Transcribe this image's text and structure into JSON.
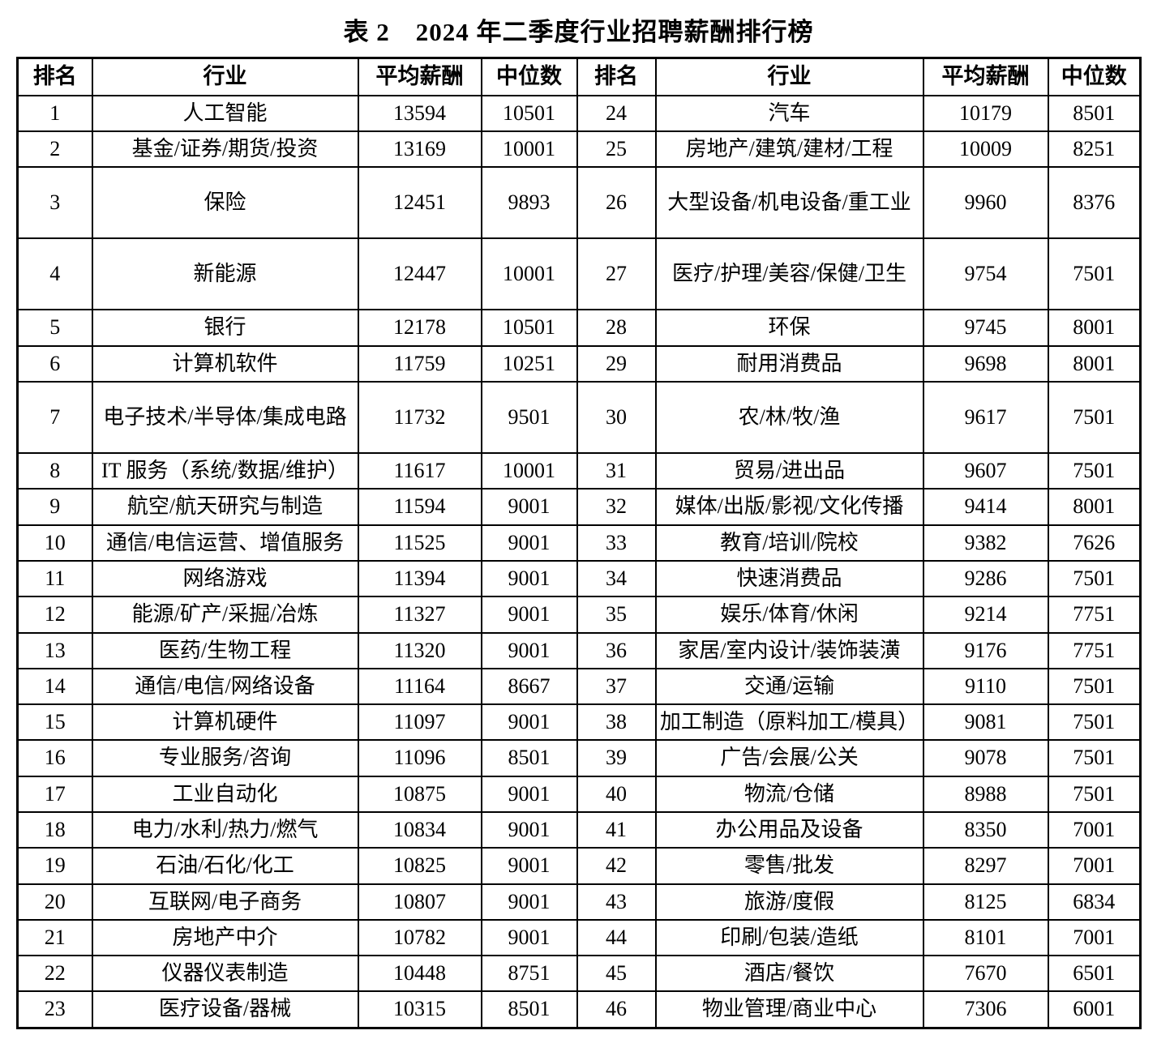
{
  "title": "表 2　2024 年二季度行业招聘薪酬排行榜",
  "table": {
    "headers": [
      "排名",
      "行业",
      "平均薪酬",
      "中位数",
      "排名",
      "行业",
      "平均薪酬",
      "中位数"
    ],
    "rows": [
      {
        "left": {
          "rank": "1",
          "industry": "人工智能",
          "avg": "13594",
          "median": "10501"
        },
        "right": {
          "rank": "24",
          "industry": "汽车",
          "avg": "10179",
          "median": "8501"
        }
      },
      {
        "left": {
          "rank": "2",
          "industry": "基金/证券/期货/投资",
          "avg": "13169",
          "median": "10001"
        },
        "right": {
          "rank": "25",
          "industry": "房地产/建筑/建材/工程",
          "avg": "10009",
          "median": "8251"
        }
      },
      {
        "left": {
          "rank": "3",
          "industry": "保险",
          "avg": "12451",
          "median": "9893"
        },
        "right": {
          "rank": "26",
          "industry": "大型设备/机电设备/重工业",
          "avg": "9960",
          "median": "8376"
        }
      },
      {
        "left": {
          "rank": "4",
          "industry": "新能源",
          "avg": "12447",
          "median": "10001"
        },
        "right": {
          "rank": "27",
          "industry": "医疗/护理/美容/保健/卫生",
          "avg": "9754",
          "median": "7501"
        }
      },
      {
        "left": {
          "rank": "5",
          "industry": "银行",
          "avg": "12178",
          "median": "10501"
        },
        "right": {
          "rank": "28",
          "industry": "环保",
          "avg": "9745",
          "median": "8001"
        }
      },
      {
        "left": {
          "rank": "6",
          "industry": "计算机软件",
          "avg": "11759",
          "median": "10251"
        },
        "right": {
          "rank": "29",
          "industry": "耐用消费品",
          "avg": "9698",
          "median": "8001"
        }
      },
      {
        "left": {
          "rank": "7",
          "industry": "电子技术/半导体/集成电路",
          "avg": "11732",
          "median": "9501"
        },
        "right": {
          "rank": "30",
          "industry": "农/林/牧/渔",
          "avg": "9617",
          "median": "7501"
        }
      },
      {
        "left": {
          "rank": "8",
          "industry": "IT 服务（系统/数据/维护）",
          "avg": "11617",
          "median": "10001"
        },
        "right": {
          "rank": "31",
          "industry": "贸易/进出品",
          "avg": "9607",
          "median": "7501"
        }
      },
      {
        "left": {
          "rank": "9",
          "industry": "航空/航天研究与制造",
          "avg": "11594",
          "median": "9001"
        },
        "right": {
          "rank": "32",
          "industry": "媒体/出版/影视/文化传播",
          "avg": "9414",
          "median": "8001"
        }
      },
      {
        "left": {
          "rank": "10",
          "industry": "通信/电信运营、增值服务",
          "avg": "11525",
          "median": "9001"
        },
        "right": {
          "rank": "33",
          "industry": "教育/培训/院校",
          "avg": "9382",
          "median": "7626"
        }
      },
      {
        "left": {
          "rank": "11",
          "industry": "网络游戏",
          "avg": "11394",
          "median": "9001"
        },
        "right": {
          "rank": "34",
          "industry": "快速消费品",
          "avg": "9286",
          "median": "7501"
        }
      },
      {
        "left": {
          "rank": "12",
          "industry": "能源/矿产/采掘/冶炼",
          "avg": "11327",
          "median": "9001"
        },
        "right": {
          "rank": "35",
          "industry": "娱乐/体育/休闲",
          "avg": "9214",
          "median": "7751"
        }
      },
      {
        "left": {
          "rank": "13",
          "industry": "医药/生物工程",
          "avg": "11320",
          "median": "9001"
        },
        "right": {
          "rank": "36",
          "industry": "家居/室内设计/装饰装潢",
          "avg": "9176",
          "median": "7751"
        }
      },
      {
        "left": {
          "rank": "14",
          "industry": "通信/电信/网络设备",
          "avg": "11164",
          "median": "8667"
        },
        "right": {
          "rank": "37",
          "industry": "交通/运输",
          "avg": "9110",
          "median": "7501"
        }
      },
      {
        "left": {
          "rank": "15",
          "industry": "计算机硬件",
          "avg": "11097",
          "median": "9001"
        },
        "right": {
          "rank": "38",
          "industry": "加工制造（原料加工/模具）",
          "avg": "9081",
          "median": "7501"
        }
      },
      {
        "left": {
          "rank": "16",
          "industry": "专业服务/咨询",
          "avg": "11096",
          "median": "8501"
        },
        "right": {
          "rank": "39",
          "industry": "广告/会展/公关",
          "avg": "9078",
          "median": "7501"
        }
      },
      {
        "left": {
          "rank": "17",
          "industry": "工业自动化",
          "avg": "10875",
          "median": "9001"
        },
        "right": {
          "rank": "40",
          "industry": "物流/仓储",
          "avg": "8988",
          "median": "7501"
        }
      },
      {
        "left": {
          "rank": "18",
          "industry": "电力/水利/热力/燃气",
          "avg": "10834",
          "median": "9001"
        },
        "right": {
          "rank": "41",
          "industry": "办公用品及设备",
          "avg": "8350",
          "median": "7001"
        }
      },
      {
        "left": {
          "rank": "19",
          "industry": "石油/石化/化工",
          "avg": "10825",
          "median": "9001"
        },
        "right": {
          "rank": "42",
          "industry": "零售/批发",
          "avg": "8297",
          "median": "7001"
        }
      },
      {
        "left": {
          "rank": "20",
          "industry": "互联网/电子商务",
          "avg": "10807",
          "median": "9001"
        },
        "right": {
          "rank": "43",
          "industry": "旅游/度假",
          "avg": "8125",
          "median": "6834"
        }
      },
      {
        "left": {
          "rank": "21",
          "industry": "房地产中介",
          "avg": "10782",
          "median": "9001"
        },
        "right": {
          "rank": "44",
          "industry": "印刷/包装/造纸",
          "avg": "8101",
          "median": "7001"
        }
      },
      {
        "left": {
          "rank": "22",
          "industry": "仪器仪表制造",
          "avg": "10448",
          "median": "8751"
        },
        "right": {
          "rank": "45",
          "industry": "酒店/餐饮",
          "avg": "7670",
          "median": "6501"
        }
      },
      {
        "left": {
          "rank": "23",
          "industry": "医疗设备/器械",
          "avg": "10315",
          "median": "8501"
        },
        "right": {
          "rank": "46",
          "industry": "物业管理/商业中心",
          "avg": "7306",
          "median": "6001"
        }
      }
    ]
  }
}
